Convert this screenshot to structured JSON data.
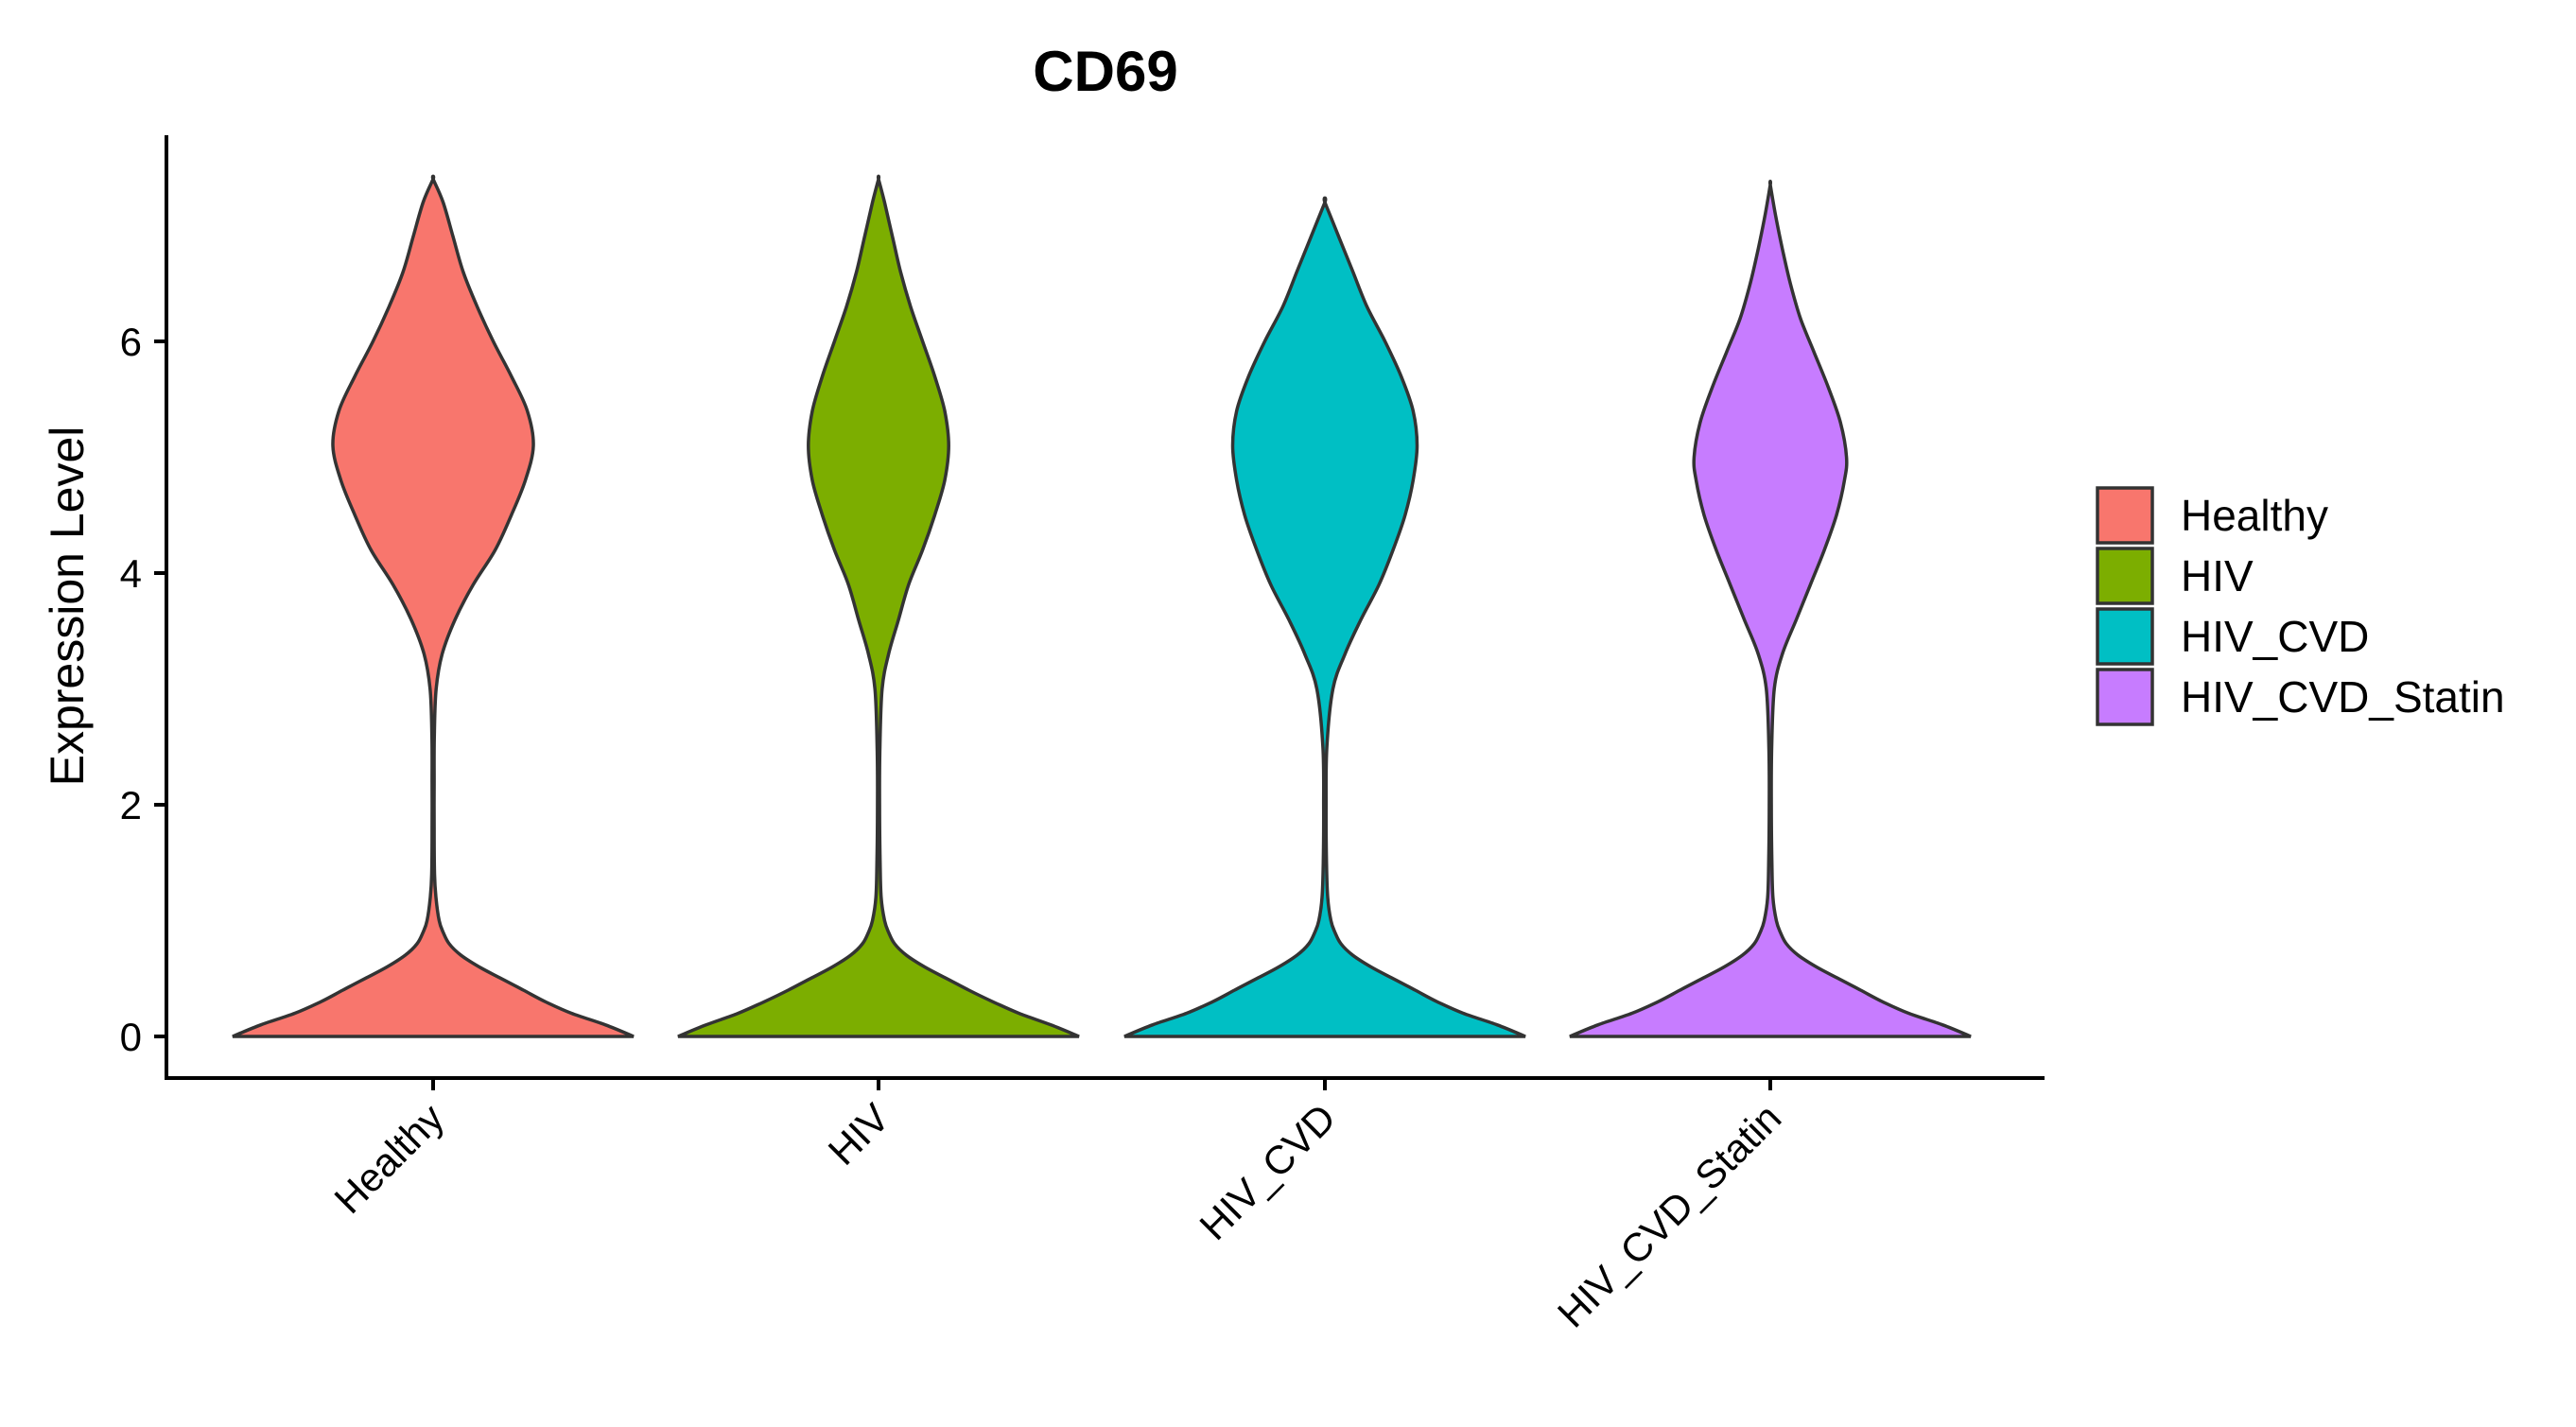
{
  "chart_data": {
    "type": "violin",
    "title": "CD69",
    "xlabel": "",
    "ylabel": "Expression Level",
    "ylim": [
      -0.35,
      7.8
    ],
    "yticks": [
      0,
      2,
      4,
      6
    ],
    "categories": [
      "Healthy",
      "HIV",
      "HIV_CVD",
      "HIV_CVD_Statin"
    ],
    "colors": [
      "#F8766D",
      "#7CAE00",
      "#00BFC4",
      "#C77CFF"
    ],
    "legend": {
      "position": "right",
      "entries": [
        "Healthy",
        "HIV",
        "HIV_CVD",
        "HIV_CVD_Statin"
      ]
    },
    "violins": [
      {
        "group": "Healthy",
        "min": 0,
        "max": 7.4,
        "profile": [
          [
            0,
            1.0
          ],
          [
            0.1,
            0.86
          ],
          [
            0.2,
            0.69
          ],
          [
            0.3,
            0.56
          ],
          [
            0.4,
            0.45
          ],
          [
            0.5,
            0.34
          ],
          [
            0.6,
            0.23
          ],
          [
            0.7,
            0.14
          ],
          [
            0.8,
            0.08
          ],
          [
            0.9,
            0.05
          ],
          [
            1.0,
            0.03
          ],
          [
            1.2,
            0.014
          ],
          [
            1.4,
            0.007
          ],
          [
            1.8,
            0.005
          ],
          [
            2.2,
            0.005
          ],
          [
            2.6,
            0.006
          ],
          [
            3.0,
            0.015
          ],
          [
            3.3,
            0.045
          ],
          [
            3.6,
            0.11
          ],
          [
            3.9,
            0.2
          ],
          [
            4.2,
            0.31
          ],
          [
            4.5,
            0.39
          ],
          [
            4.8,
            0.46
          ],
          [
            5.1,
            0.5
          ],
          [
            5.4,
            0.47
          ],
          [
            5.7,
            0.39
          ],
          [
            6.0,
            0.3
          ],
          [
            6.3,
            0.22
          ],
          [
            6.6,
            0.15
          ],
          [
            6.9,
            0.1
          ],
          [
            7.2,
            0.05
          ],
          [
            7.4,
            0.0
          ]
        ]
      },
      {
        "group": "HIV",
        "min": 0,
        "max": 7.4,
        "profile": [
          [
            0,
            1.0
          ],
          [
            0.1,
            0.86
          ],
          [
            0.2,
            0.7
          ],
          [
            0.3,
            0.57
          ],
          [
            0.4,
            0.45
          ],
          [
            0.5,
            0.34
          ],
          [
            0.6,
            0.23
          ],
          [
            0.7,
            0.14
          ],
          [
            0.8,
            0.08
          ],
          [
            0.9,
            0.05
          ],
          [
            1.0,
            0.03
          ],
          [
            1.2,
            0.013
          ],
          [
            1.5,
            0.008
          ],
          [
            2.0,
            0.005
          ],
          [
            2.5,
            0.007
          ],
          [
            3.0,
            0.018
          ],
          [
            3.3,
            0.05
          ],
          [
            3.6,
            0.1
          ],
          [
            3.9,
            0.15
          ],
          [
            4.2,
            0.22
          ],
          [
            4.5,
            0.28
          ],
          [
            4.8,
            0.33
          ],
          [
            5.1,
            0.35
          ],
          [
            5.4,
            0.33
          ],
          [
            5.7,
            0.28
          ],
          [
            6.0,
            0.22
          ],
          [
            6.3,
            0.16
          ],
          [
            6.6,
            0.11
          ],
          [
            6.9,
            0.07
          ],
          [
            7.2,
            0.03
          ],
          [
            7.4,
            0.0
          ]
        ]
      },
      {
        "group": "HIV_CVD",
        "min": 0,
        "max": 7.2,
        "profile": [
          [
            0,
            1.0
          ],
          [
            0.1,
            0.86
          ],
          [
            0.2,
            0.69
          ],
          [
            0.3,
            0.56
          ],
          [
            0.4,
            0.45
          ],
          [
            0.5,
            0.34
          ],
          [
            0.6,
            0.23
          ],
          [
            0.7,
            0.14
          ],
          [
            0.8,
            0.08
          ],
          [
            0.9,
            0.05
          ],
          [
            1.0,
            0.03
          ],
          [
            1.2,
            0.014
          ],
          [
            1.5,
            0.008
          ],
          [
            2.0,
            0.006
          ],
          [
            2.5,
            0.01
          ],
          [
            3.0,
            0.04
          ],
          [
            3.3,
            0.1
          ],
          [
            3.6,
            0.18
          ],
          [
            3.9,
            0.27
          ],
          [
            4.2,
            0.34
          ],
          [
            4.5,
            0.4
          ],
          [
            4.8,
            0.44
          ],
          [
            5.1,
            0.46
          ],
          [
            5.4,
            0.44
          ],
          [
            5.7,
            0.38
          ],
          [
            6.0,
            0.3
          ],
          [
            6.3,
            0.21
          ],
          [
            6.6,
            0.14
          ],
          [
            6.9,
            0.07
          ],
          [
            7.2,
            0.0
          ]
        ]
      },
      {
        "group": "HIV_CVD_Statin",
        "min": 0,
        "max": 7.35,
        "profile": [
          [
            0,
            1.0
          ],
          [
            0.1,
            0.86
          ],
          [
            0.2,
            0.69
          ],
          [
            0.3,
            0.56
          ],
          [
            0.4,
            0.45
          ],
          [
            0.5,
            0.34
          ],
          [
            0.6,
            0.23
          ],
          [
            0.7,
            0.14
          ],
          [
            0.8,
            0.08
          ],
          [
            0.9,
            0.05
          ],
          [
            1.0,
            0.03
          ],
          [
            1.2,
            0.013
          ],
          [
            1.5,
            0.008
          ],
          [
            2.0,
            0.005
          ],
          [
            2.5,
            0.007
          ],
          [
            3.0,
            0.02
          ],
          [
            3.3,
            0.06
          ],
          [
            3.6,
            0.13
          ],
          [
            3.9,
            0.2
          ],
          [
            4.2,
            0.27
          ],
          [
            4.5,
            0.33
          ],
          [
            4.8,
            0.37
          ],
          [
            5.0,
            0.38
          ],
          [
            5.3,
            0.35
          ],
          [
            5.6,
            0.29
          ],
          [
            5.9,
            0.22
          ],
          [
            6.2,
            0.15
          ],
          [
            6.5,
            0.1
          ],
          [
            6.8,
            0.06
          ],
          [
            7.1,
            0.025
          ],
          [
            7.35,
            0.0
          ]
        ]
      }
    ]
  }
}
